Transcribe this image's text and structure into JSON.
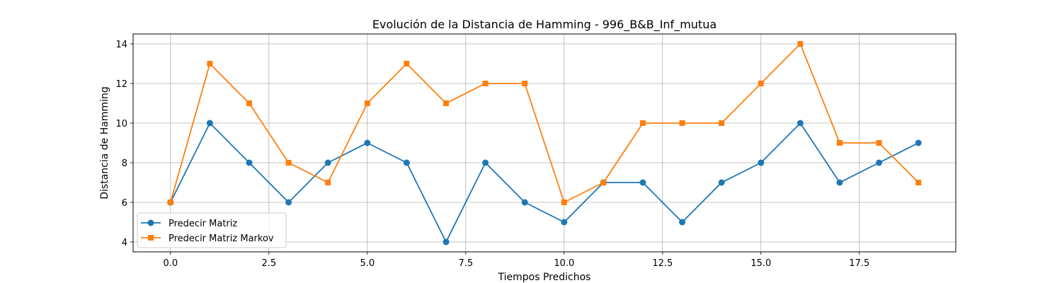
{
  "chart_data": {
    "type": "line",
    "title": "Evolución de la Distancia de Hamming - 996_B&B_Inf_mutua",
    "xlabel": "Tiempos Predichos",
    "ylabel": "Distancia de Hamming",
    "xlim": [
      -0.95,
      19.95
    ],
    "ylim": [
      3.5,
      14.5
    ],
    "xticks": [
      0.0,
      2.5,
      5.0,
      7.5,
      10.0,
      12.5,
      15.0,
      17.5
    ],
    "xtick_labels": [
      "0.0",
      "2.5",
      "5.0",
      "7.5",
      "10.0",
      "12.5",
      "15.0",
      "17.5"
    ],
    "yticks": [
      4,
      6,
      8,
      10,
      12,
      14
    ],
    "ytick_labels": [
      "4",
      "6",
      "8",
      "10",
      "12",
      "14"
    ],
    "grid": true,
    "legend_position": "lower-left",
    "x": [
      0,
      1,
      2,
      3,
      4,
      5,
      6,
      7,
      8,
      9,
      10,
      11,
      12,
      13,
      14,
      15,
      16,
      17,
      18,
      19
    ],
    "series": [
      {
        "name": "Predecir Matriz",
        "color": "#1f77b4",
        "marker": "circle",
        "values": [
          6,
          10,
          8,
          6,
          8,
          9,
          8,
          4,
          8,
          6,
          5,
          7,
          7,
          5,
          7,
          8,
          10,
          7,
          8,
          9
        ]
      },
      {
        "name": "Predecir Matriz Markov",
        "color": "#ff7f0e",
        "marker": "square",
        "values": [
          6,
          13,
          11,
          8,
          7,
          11,
          13,
          11,
          12,
          12,
          6,
          7,
          10,
          10,
          10,
          12,
          14,
          9,
          9,
          7
        ]
      }
    ]
  }
}
